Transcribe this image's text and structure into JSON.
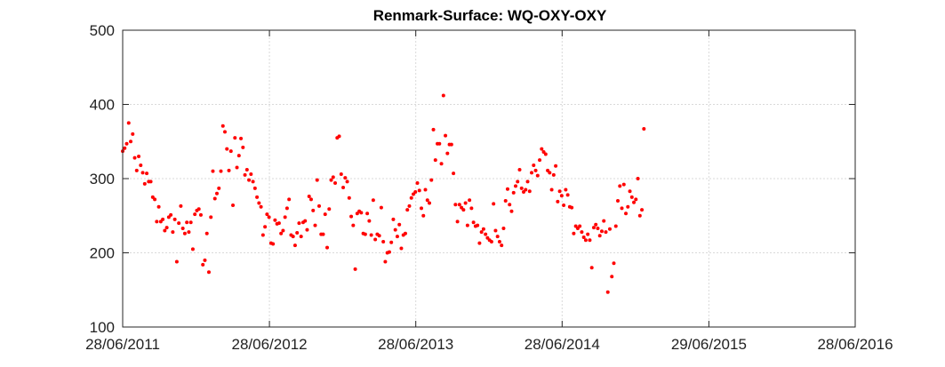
{
  "chart_data": {
    "type": "scatter",
    "title": "Renmark-Surface: WQ-OXY-OXY",
    "xlabel": "",
    "ylabel": "",
    "ylim": [
      100,
      500
    ],
    "x_axis": "date",
    "xlim": [
      "2011-06-28",
      "2016-06-28"
    ],
    "xticks": [
      {
        "date": "2011-06-28",
        "label": "28/06/2011"
      },
      {
        "date": "2012-06-28",
        "label": "28/06/2012"
      },
      {
        "date": "2013-06-28",
        "label": "28/06/2013"
      },
      {
        "date": "2014-06-28",
        "label": "28/06/2014"
      },
      {
        "date": "2015-06-29",
        "label": "29/06/2015"
      },
      {
        "date": "2016-06-28",
        "label": "28/06/2016"
      }
    ],
    "yticks": [
      100,
      200,
      300,
      400,
      500
    ],
    "grid": true,
    "marker_color": "#ff0000",
    "series": [
      {
        "points": [
          [
            "2011-06-28",
            337
          ],
          [
            "2011-07-03",
            341
          ],
          [
            "2011-07-08",
            347
          ],
          [
            "2011-07-13",
            375
          ],
          [
            "2011-07-18",
            350
          ],
          [
            "2011-07-23",
            360
          ],
          [
            "2011-07-28",
            328
          ],
          [
            "2011-08-02",
            311
          ],
          [
            "2011-08-07",
            330
          ],
          [
            "2011-08-12",
            318
          ],
          [
            "2011-08-17",
            308
          ],
          [
            "2011-08-22",
            293
          ],
          [
            "2011-08-27",
            307
          ],
          [
            "2011-09-01",
            296
          ],
          [
            "2011-09-06",
            296
          ],
          [
            "2011-09-11",
            275
          ],
          [
            "2011-09-16",
            272
          ],
          [
            "2011-09-21",
            242
          ],
          [
            "2011-09-26",
            262
          ],
          [
            "2011-10-01",
            242
          ],
          [
            "2011-10-06",
            245
          ],
          [
            "2011-10-11",
            230
          ],
          [
            "2011-10-16",
            234
          ],
          [
            "2011-10-21",
            248
          ],
          [
            "2011-10-26",
            251
          ],
          [
            "2011-10-31",
            228
          ],
          [
            "2011-11-05",
            245
          ],
          [
            "2011-11-10",
            188
          ],
          [
            "2011-11-15",
            240
          ],
          [
            "2011-11-20",
            263
          ],
          [
            "2011-11-25",
            233
          ],
          [
            "2011-11-30",
            226
          ],
          [
            "2011-12-05",
            241
          ],
          [
            "2011-12-10",
            228
          ],
          [
            "2011-12-15",
            241
          ],
          [
            "2011-12-20",
            205
          ],
          [
            "2011-12-25",
            252
          ],
          [
            "2011-12-30",
            257
          ],
          [
            "2012-01-04",
            259
          ],
          [
            "2012-01-09",
            251
          ],
          [
            "2012-01-14",
            184
          ],
          [
            "2012-01-19",
            190
          ],
          [
            "2012-01-24",
            226
          ],
          [
            "2012-01-29",
            174
          ],
          [
            "2012-02-03",
            248
          ],
          [
            "2012-02-08",
            310
          ],
          [
            "2012-02-13",
            273
          ],
          [
            "2012-02-18",
            280
          ],
          [
            "2012-02-23",
            287
          ],
          [
            "2012-02-28",
            310
          ],
          [
            "2012-03-04",
            371
          ],
          [
            "2012-03-09",
            363
          ],
          [
            "2012-03-14",
            340
          ],
          [
            "2012-03-19",
            311
          ],
          [
            "2012-03-24",
            337
          ],
          [
            "2012-03-29",
            264
          ],
          [
            "2012-04-03",
            355
          ],
          [
            "2012-04-08",
            315
          ],
          [
            "2012-04-13",
            331
          ],
          [
            "2012-04-18",
            354
          ],
          [
            "2012-04-23",
            342
          ],
          [
            "2012-04-28",
            305
          ],
          [
            "2012-05-03",
            312
          ],
          [
            "2012-05-08",
            298
          ],
          [
            "2012-05-13",
            306
          ],
          [
            "2012-05-18",
            296
          ],
          [
            "2012-05-23",
            287
          ],
          [
            "2012-05-28",
            275
          ],
          [
            "2012-06-02",
            267
          ],
          [
            "2012-06-07",
            262
          ],
          [
            "2012-06-12",
            224
          ],
          [
            "2012-06-17",
            235
          ],
          [
            "2012-06-22",
            252
          ],
          [
            "2012-06-27",
            248
          ],
          [
            "2012-07-02",
            213
          ],
          [
            "2012-07-07",
            212
          ],
          [
            "2012-07-12",
            244
          ],
          [
            "2012-07-17",
            239
          ],
          [
            "2012-07-22",
            240
          ],
          [
            "2012-07-27",
            226
          ],
          [
            "2012-08-01",
            230
          ],
          [
            "2012-08-06",
            248
          ],
          [
            "2012-08-11",
            260
          ],
          [
            "2012-08-16",
            272
          ],
          [
            "2012-08-21",
            224
          ],
          [
            "2012-08-26",
            222
          ],
          [
            "2012-08-31",
            210
          ],
          [
            "2012-09-05",
            227
          ],
          [
            "2012-09-10",
            240
          ],
          [
            "2012-09-15",
            222
          ],
          [
            "2012-09-20",
            241
          ],
          [
            "2012-09-25",
            243
          ],
          [
            "2012-09-30",
            231
          ],
          [
            "2012-10-05",
            276
          ],
          [
            "2012-10-10",
            272
          ],
          [
            "2012-10-15",
            257
          ],
          [
            "2012-10-20",
            237
          ],
          [
            "2012-10-25",
            298
          ],
          [
            "2012-10-30",
            263
          ],
          [
            "2012-11-04",
            225
          ],
          [
            "2012-11-09",
            225
          ],
          [
            "2012-11-14",
            252
          ],
          [
            "2012-11-19",
            207
          ],
          [
            "2012-11-24",
            259
          ],
          [
            "2012-11-29",
            298
          ],
          [
            "2012-12-04",
            302
          ],
          [
            "2012-12-09",
            294
          ],
          [
            "2012-12-14",
            355
          ],
          [
            "2012-12-19",
            357
          ],
          [
            "2012-12-24",
            306
          ],
          [
            "2012-12-29",
            288
          ],
          [
            "2013-01-03",
            301
          ],
          [
            "2013-01-08",
            296
          ],
          [
            "2013-01-13",
            274
          ],
          [
            "2013-01-18",
            249
          ],
          [
            "2013-01-23",
            237
          ],
          [
            "2013-01-28",
            178
          ],
          [
            "2013-02-02",
            253
          ],
          [
            "2013-02-07",
            256
          ],
          [
            "2013-02-12",
            254
          ],
          [
            "2013-02-17",
            226
          ],
          [
            "2013-02-22",
            225
          ],
          [
            "2013-02-27",
            253
          ],
          [
            "2013-03-04",
            243
          ],
          [
            "2013-03-09",
            224
          ],
          [
            "2013-03-14",
            271
          ],
          [
            "2013-03-19",
            218
          ],
          [
            "2013-03-24",
            225
          ],
          [
            "2013-03-29",
            223
          ],
          [
            "2013-04-03",
            261
          ],
          [
            "2013-04-08",
            215
          ],
          [
            "2013-04-13",
            188
          ],
          [
            "2013-04-18",
            200
          ],
          [
            "2013-04-23",
            201
          ],
          [
            "2013-04-28",
            214
          ],
          [
            "2013-05-03",
            245
          ],
          [
            "2013-05-08",
            231
          ],
          [
            "2013-05-13",
            222
          ],
          [
            "2013-05-18",
            238
          ],
          [
            "2013-05-23",
            206
          ],
          [
            "2013-05-28",
            224
          ],
          [
            "2013-06-02",
            226
          ],
          [
            "2013-06-07",
            258
          ],
          [
            "2013-06-12",
            263
          ],
          [
            "2013-06-17",
            274
          ],
          [
            "2013-06-22",
            279
          ],
          [
            "2013-06-27",
            282
          ],
          [
            "2013-07-02",
            294
          ],
          [
            "2013-07-07",
            284
          ],
          [
            "2013-07-12",
            260
          ],
          [
            "2013-07-17",
            250
          ],
          [
            "2013-07-22",
            285
          ],
          [
            "2013-07-27",
            271
          ],
          [
            "2013-08-01",
            267
          ],
          [
            "2013-08-06",
            298
          ],
          [
            "2013-08-11",
            366
          ],
          [
            "2013-08-16",
            325
          ],
          [
            "2013-08-21",
            347
          ],
          [
            "2013-08-26",
            347
          ],
          [
            "2013-08-31",
            320
          ],
          [
            "2013-09-05",
            412
          ],
          [
            "2013-09-10",
            358
          ],
          [
            "2013-09-15",
            334
          ],
          [
            "2013-09-20",
            346
          ],
          [
            "2013-09-25",
            346
          ],
          [
            "2013-09-30",
            307
          ],
          [
            "2013-10-05",
            265
          ],
          [
            "2013-10-10",
            242
          ],
          [
            "2013-10-15",
            265
          ],
          [
            "2013-10-20",
            261
          ],
          [
            "2013-10-25",
            258
          ],
          [
            "2013-10-30",
            267
          ],
          [
            "2013-11-04",
            237
          ],
          [
            "2013-11-09",
            271
          ],
          [
            "2013-11-14",
            260
          ],
          [
            "2013-11-19",
            241
          ],
          [
            "2013-11-24",
            236
          ],
          [
            "2013-11-29",
            237
          ],
          [
            "2013-12-04",
            213
          ],
          [
            "2013-12-09",
            228
          ],
          [
            "2013-12-14",
            232
          ],
          [
            "2013-12-19",
            225
          ],
          [
            "2013-12-24",
            220
          ],
          [
            "2013-12-29",
            217
          ],
          [
            "2014-01-03",
            215
          ],
          [
            "2014-01-08",
            266
          ],
          [
            "2014-01-13",
            230
          ],
          [
            "2014-01-18",
            222
          ],
          [
            "2014-01-23",
            215
          ],
          [
            "2014-01-28",
            210
          ],
          [
            "2014-02-02",
            233
          ],
          [
            "2014-02-07",
            270
          ],
          [
            "2014-02-12",
            286
          ],
          [
            "2014-02-17",
            265
          ],
          [
            "2014-02-22",
            256
          ],
          [
            "2014-02-27",
            281
          ],
          [
            "2014-03-04",
            290
          ],
          [
            "2014-03-09",
            296
          ],
          [
            "2014-03-14",
            312
          ],
          [
            "2014-03-19",
            287
          ],
          [
            "2014-03-24",
            282
          ],
          [
            "2014-03-29",
            285
          ],
          [
            "2014-04-03",
            296
          ],
          [
            "2014-04-08",
            283
          ],
          [
            "2014-04-13",
            308
          ],
          [
            "2014-04-18",
            318
          ],
          [
            "2014-04-23",
            311
          ],
          [
            "2014-04-28",
            304
          ],
          [
            "2014-05-03",
            325
          ],
          [
            "2014-05-08",
            340
          ],
          [
            "2014-05-13",
            336
          ],
          [
            "2014-05-18",
            333
          ],
          [
            "2014-05-23",
            311
          ],
          [
            "2014-05-28",
            308
          ],
          [
            "2014-06-02",
            285
          ],
          [
            "2014-06-07",
            305
          ],
          [
            "2014-06-12",
            317
          ],
          [
            "2014-06-17",
            269
          ],
          [
            "2014-06-22",
            283
          ],
          [
            "2014-06-27",
            277
          ],
          [
            "2014-07-02",
            264
          ],
          [
            "2014-07-07",
            285
          ],
          [
            "2014-07-12",
            278
          ],
          [
            "2014-07-17",
            262
          ],
          [
            "2014-07-22",
            261
          ],
          [
            "2014-07-27",
            226
          ],
          [
            "2014-08-01",
            236
          ],
          [
            "2014-08-06",
            233
          ],
          [
            "2014-08-11",
            236
          ],
          [
            "2014-08-16",
            228
          ],
          [
            "2014-08-21",
            221
          ],
          [
            "2014-08-26",
            217
          ],
          [
            "2014-08-31",
            225
          ],
          [
            "2014-09-05",
            217
          ],
          [
            "2014-09-10",
            180
          ],
          [
            "2014-09-15",
            234
          ],
          [
            "2014-09-20",
            238
          ],
          [
            "2014-09-25",
            233
          ],
          [
            "2014-09-30",
            223
          ],
          [
            "2014-10-05",
            229
          ],
          [
            "2014-10-10",
            243
          ],
          [
            "2014-10-15",
            228
          ],
          [
            "2014-10-20",
            147
          ],
          [
            "2014-10-25",
            232
          ],
          [
            "2014-10-30",
            168
          ],
          [
            "2014-11-04",
            186
          ],
          [
            "2014-11-09",
            236
          ],
          [
            "2014-11-14",
            270
          ],
          [
            "2014-11-19",
            290
          ],
          [
            "2014-11-24",
            260
          ],
          [
            "2014-11-29",
            292
          ],
          [
            "2014-12-04",
            253
          ],
          [
            "2014-12-09",
            262
          ],
          [
            "2014-12-14",
            283
          ],
          [
            "2014-12-19",
            275
          ],
          [
            "2014-12-24",
            268
          ],
          [
            "2014-12-29",
            272
          ],
          [
            "2015-01-03",
            300
          ],
          [
            "2015-01-08",
            250
          ],
          [
            "2015-01-13",
            258
          ],
          [
            "2015-01-18",
            367
          ]
        ]
      }
    ]
  }
}
